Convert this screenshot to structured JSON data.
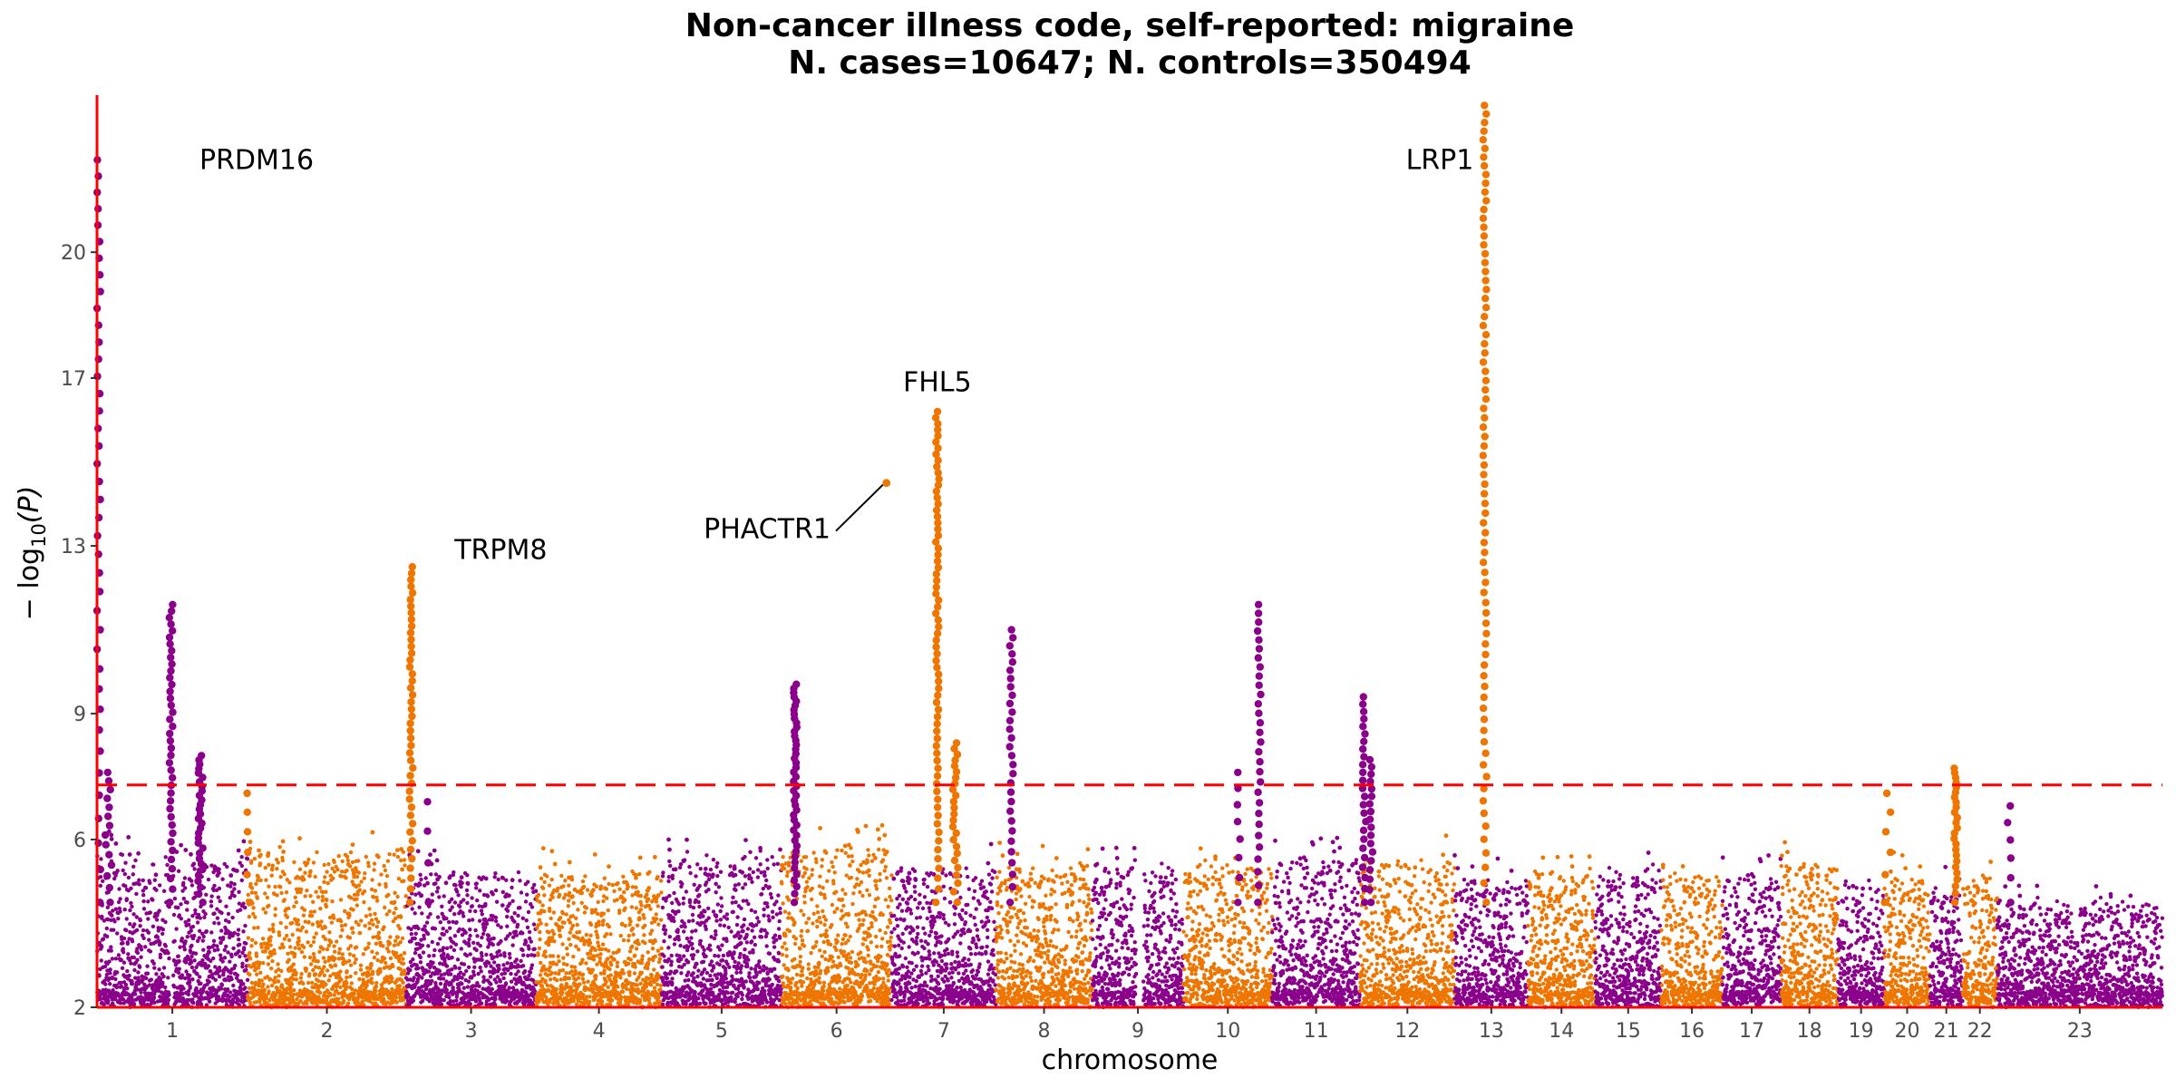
{
  "chart_data": {
    "type": "scatter",
    "title_line1": "Non-cancer illness code, self-reported: migraine",
    "title_line2": "N. cases=10647; N. controls=350494",
    "xlabel": "chromosome",
    "ylabel_main": "− log",
    "ylabel_sub": "10",
    "ylabel_tail": "(P)",
    "y_ticks": [
      2,
      6,
      9,
      13,
      17,
      20
    ],
    "ylim": [
      2,
      23.7
    ],
    "significance_threshold": 7.3,
    "colors": {
      "odd": "#8B008B",
      "even": "#EE7600",
      "threshold": "#FF0000",
      "axis": "#FF0000"
    },
    "chromosome_order": [
      "1",
      "2",
      "3",
      "4",
      "5",
      "6",
      "7",
      "8",
      "9",
      "10",
      "11",
      "12",
      "13",
      "14",
      "15",
      "16",
      "17",
      "18",
      "19",
      "20",
      "21",
      "22",
      "23"
    ],
    "chromosomes": [
      {
        "label": "1",
        "span": [
          1,
          176
        ],
        "gaps": [
          [
            85,
            89
          ]
        ],
        "color": "odd",
        "base": 5.0
      },
      {
        "label": "2",
        "span": [
          176,
          360
        ],
        "gaps": [],
        "color": "even",
        "base": 5.1
      },
      {
        "label": "3",
        "span": [
          360,
          511
        ],
        "gaps": [],
        "color": "odd",
        "base": 4.6
      },
      {
        "label": "4",
        "span": [
          511,
          657
        ],
        "gaps": [],
        "color": "even",
        "base": 4.6
      },
      {
        "label": "5",
        "span": [
          657,
          796
        ],
        "gaps": [],
        "color": "odd",
        "base": 5.0
      },
      {
        "label": "6",
        "span": [
          796,
          924
        ],
        "gaps": [],
        "color": "even",
        "base": 5.2
      },
      {
        "label": "7",
        "span": [
          924,
          1045
        ],
        "gaps": [],
        "color": "odd",
        "base": 4.7
      },
      {
        "label": "8",
        "span": [
          1045,
          1157
        ],
        "gaps": [],
        "color": "even",
        "base": 4.8
      },
      {
        "label": "9",
        "span": [
          1157,
          1263
        ],
        "gaps": [
          [
            1208,
            1216
          ]
        ],
        "color": "odd",
        "base": 4.8
      },
      {
        "label": "10",
        "span": [
          1263,
          1366
        ],
        "gaps": [],
        "color": "even",
        "base": 4.8
      },
      {
        "label": "11",
        "span": [
          1366,
          1468
        ],
        "gaps": [],
        "color": "odd",
        "base": 4.9
      },
      {
        "label": "12",
        "span": [
          1468,
          1578
        ],
        "gaps": [],
        "color": "even",
        "base": 4.9
      },
      {
        "label": "13",
        "span": [
          1578,
          1663
        ],
        "gaps": [],
        "color": "odd",
        "base": 4.5
      },
      {
        "label": "14",
        "span": [
          1663,
          1741
        ],
        "gaps": [],
        "color": "even",
        "base": 4.6
      },
      {
        "label": "15",
        "span": [
          1741,
          1818
        ],
        "gaps": [],
        "color": "odd",
        "base": 4.7
      },
      {
        "label": "16",
        "span": [
          1818,
          1889
        ],
        "gaps": [],
        "color": "even",
        "base": 4.6
      },
      {
        "label": "17",
        "span": [
          1889,
          1957
        ],
        "gaps": [],
        "color": "odd",
        "base": 4.5
      },
      {
        "label": "18",
        "span": [
          1957,
          2023
        ],
        "gaps": [],
        "color": "even",
        "base": 4.8
      },
      {
        "label": "19",
        "span": [
          2023,
          2077
        ],
        "gaps": [],
        "color": "odd",
        "base": 4.4
      },
      {
        "label": "20",
        "span": [
          2077,
          2130
        ],
        "gaps": [],
        "color": "even",
        "base": 4.5
      },
      {
        "label": "21",
        "span": [
          2130,
          2168
        ],
        "gaps": [],
        "color": "odd",
        "base": 4.3
      },
      {
        "label": "22",
        "span": [
          2168,
          2208
        ],
        "gaps": [],
        "color": "even",
        "base": 4.5
      },
      {
        "label": "23",
        "span": [
          2208,
          2400
        ],
        "gaps": [],
        "color": "odd",
        "base": 3.9
      }
    ],
    "peaks": [
      {
        "chrom": "1",
        "pos": 3,
        "top": 22.2,
        "n": 40,
        "spread": 2
      },
      {
        "chrom": "1",
        "pos": 14,
        "top": 7.6,
        "n": 14,
        "spread": 4
      },
      {
        "chrom": "1",
        "pos": 87,
        "top": 11.6,
        "n": 40,
        "spread": 2
      },
      {
        "chrom": "1",
        "pos": 121,
        "top": 8.0,
        "n": 30,
        "spread": 3
      },
      {
        "chrom": "2",
        "pos": 177,
        "top": 7.1,
        "n": 6,
        "spread": 2
      },
      {
        "chrom": "2",
        "pos": 366,
        "top": 12.5,
        "n": 45,
        "spread": 2
      },
      {
        "chrom": "3",
        "pos": 385,
        "top": 6.9,
        "n": 4,
        "spread": 1
      },
      {
        "chrom": "5",
        "pos": 812,
        "top": 9.7,
        "n": 45,
        "spread": 2
      },
      {
        "chrom": "6",
        "pos": 918,
        "top": 14.5,
        "n": 1,
        "spread": 0
      },
      {
        "chrom": "6",
        "pos": 977,
        "top": 16.2,
        "n": 70,
        "spread": 2
      },
      {
        "chrom": "6",
        "pos": 998,
        "top": 8.3,
        "n": 25,
        "spread": 3
      },
      {
        "chrom": "7",
        "pos": 1063,
        "top": 11.0,
        "n": 30,
        "spread": 2
      },
      {
        "chrom": "9",
        "pos": 1327,
        "top": 7.6,
        "n": 8,
        "spread": 2
      },
      {
        "chrom": "9",
        "pos": 1351,
        "top": 11.6,
        "n": 30,
        "spread": 2
      },
      {
        "chrom": "11",
        "pos": 1473,
        "top": 9.4,
        "n": 25,
        "spread": 2
      },
      {
        "chrom": "11",
        "pos": 1481,
        "top": 7.9,
        "n": 18,
        "spread": 2
      },
      {
        "chrom": "12",
        "pos": 1613,
        "top": 23.5,
        "n": 80,
        "spread": 2
      },
      {
        "chrom": "18",
        "pos": 2081,
        "top": 7.1,
        "n": 6,
        "spread": 4
      },
      {
        "chrom": "20",
        "pos": 2160,
        "top": 7.7,
        "n": 25,
        "spread": 2
      },
      {
        "chrom": "21",
        "pos": 2222,
        "top": 6.8,
        "n": 6,
        "spread": 2
      }
    ],
    "annotations": [
      {
        "text": "PRDM16",
        "point": [
          3,
          22.2
        ],
        "label_pos": [
          120,
          22.2
        ],
        "anchor": "start"
      },
      {
        "text": "TRPM8",
        "point": [
          366,
          12.5
        ],
        "label_pos": [
          470,
          12.9
        ],
        "anchor": "middle"
      },
      {
        "text": "PHACTR1",
        "point": [
          918,
          14.5
        ],
        "label_pos": [
          853,
          13.4
        ],
        "anchor": "end",
        "leader": true
      },
      {
        "text": "FHL5",
        "point": [
          977,
          16.2
        ],
        "label_pos": [
          977,
          16.9
        ],
        "anchor": "middle"
      },
      {
        "text": "LRP1",
        "point": [
          1613,
          23.5
        ],
        "label_pos": [
          1600,
          22.2
        ],
        "anchor": "end"
      }
    ]
  }
}
